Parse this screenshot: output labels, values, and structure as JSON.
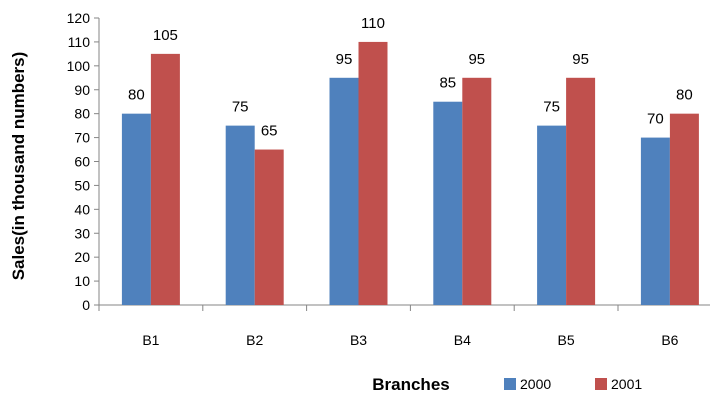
{
  "chart_data": {
    "type": "bar",
    "title": "",
    "xlabel": "Branches",
    "ylabel": "Sales(in thousand numbers)",
    "categories": [
      "B1",
      "B2",
      "B3",
      "B4",
      "B5",
      "B6"
    ],
    "series": [
      {
        "name": "2000",
        "color": "#4f81bd",
        "values": [
          80,
          75,
          95,
          85,
          75,
          70
        ]
      },
      {
        "name": "2001",
        "color": "#c0504d",
        "values": [
          105,
          65,
          110,
          95,
          95,
          80
        ]
      }
    ],
    "ylim": [
      0,
      120
    ],
    "ytick_step": 10,
    "grid": false,
    "legend_position": "bottom-right"
  }
}
